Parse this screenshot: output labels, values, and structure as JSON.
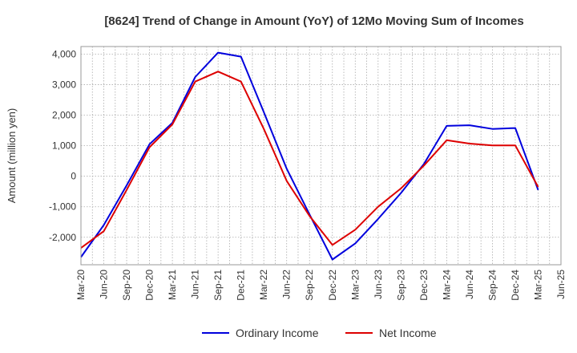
{
  "chart_data": {
    "type": "line",
    "title": "[8624]  Trend of Change in Amount (YoY) of 12Mo Moving Sum of Incomes",
    "ylabel": "Amount (million yen)",
    "xlabel": "",
    "ylim": [
      -2900,
      4250
    ],
    "yticks": [
      -2000,
      -1000,
      0,
      1000,
      2000,
      3000,
      4000
    ],
    "ytick_labels": [
      "-2,000",
      "-1,000",
      "0",
      "1,000",
      "2,000",
      "3,000",
      "4,000"
    ],
    "x": [
      "Mar-20",
      "Jun-20",
      "Sep-20",
      "Dec-20",
      "Mar-21",
      "Jun-21",
      "Sep-21",
      "Dec-21",
      "Mar-22",
      "Jun-22",
      "Sep-22",
      "Dec-22",
      "Mar-23",
      "Jun-23",
      "Sep-23",
      "Dec-23",
      "Mar-24",
      "Jun-24",
      "Sep-24",
      "Dec-24",
      "Mar-25",
      "Jun-25"
    ],
    "grid": true,
    "legend_position": "bottom-center",
    "series": [
      {
        "name": "Ordinary Income",
        "color": "#0000dd",
        "values": [
          -2650,
          -1600,
          -300,
          1050,
          1750,
          3250,
          4050,
          3920,
          2100,
          250,
          -1250,
          -2730,
          -2200,
          -1400,
          -550,
          400,
          1650,
          1670,
          1550,
          1580,
          -450,
          null
        ]
      },
      {
        "name": "Net Income",
        "color": "#dd0000",
        "values": [
          -2350,
          -1800,
          -450,
          950,
          1700,
          3100,
          3430,
          3100,
          1550,
          -150,
          -1300,
          -2250,
          -1750,
          -1000,
          -400,
          350,
          1180,
          1070,
          1010,
          1010,
          -350,
          null
        ]
      }
    ]
  }
}
